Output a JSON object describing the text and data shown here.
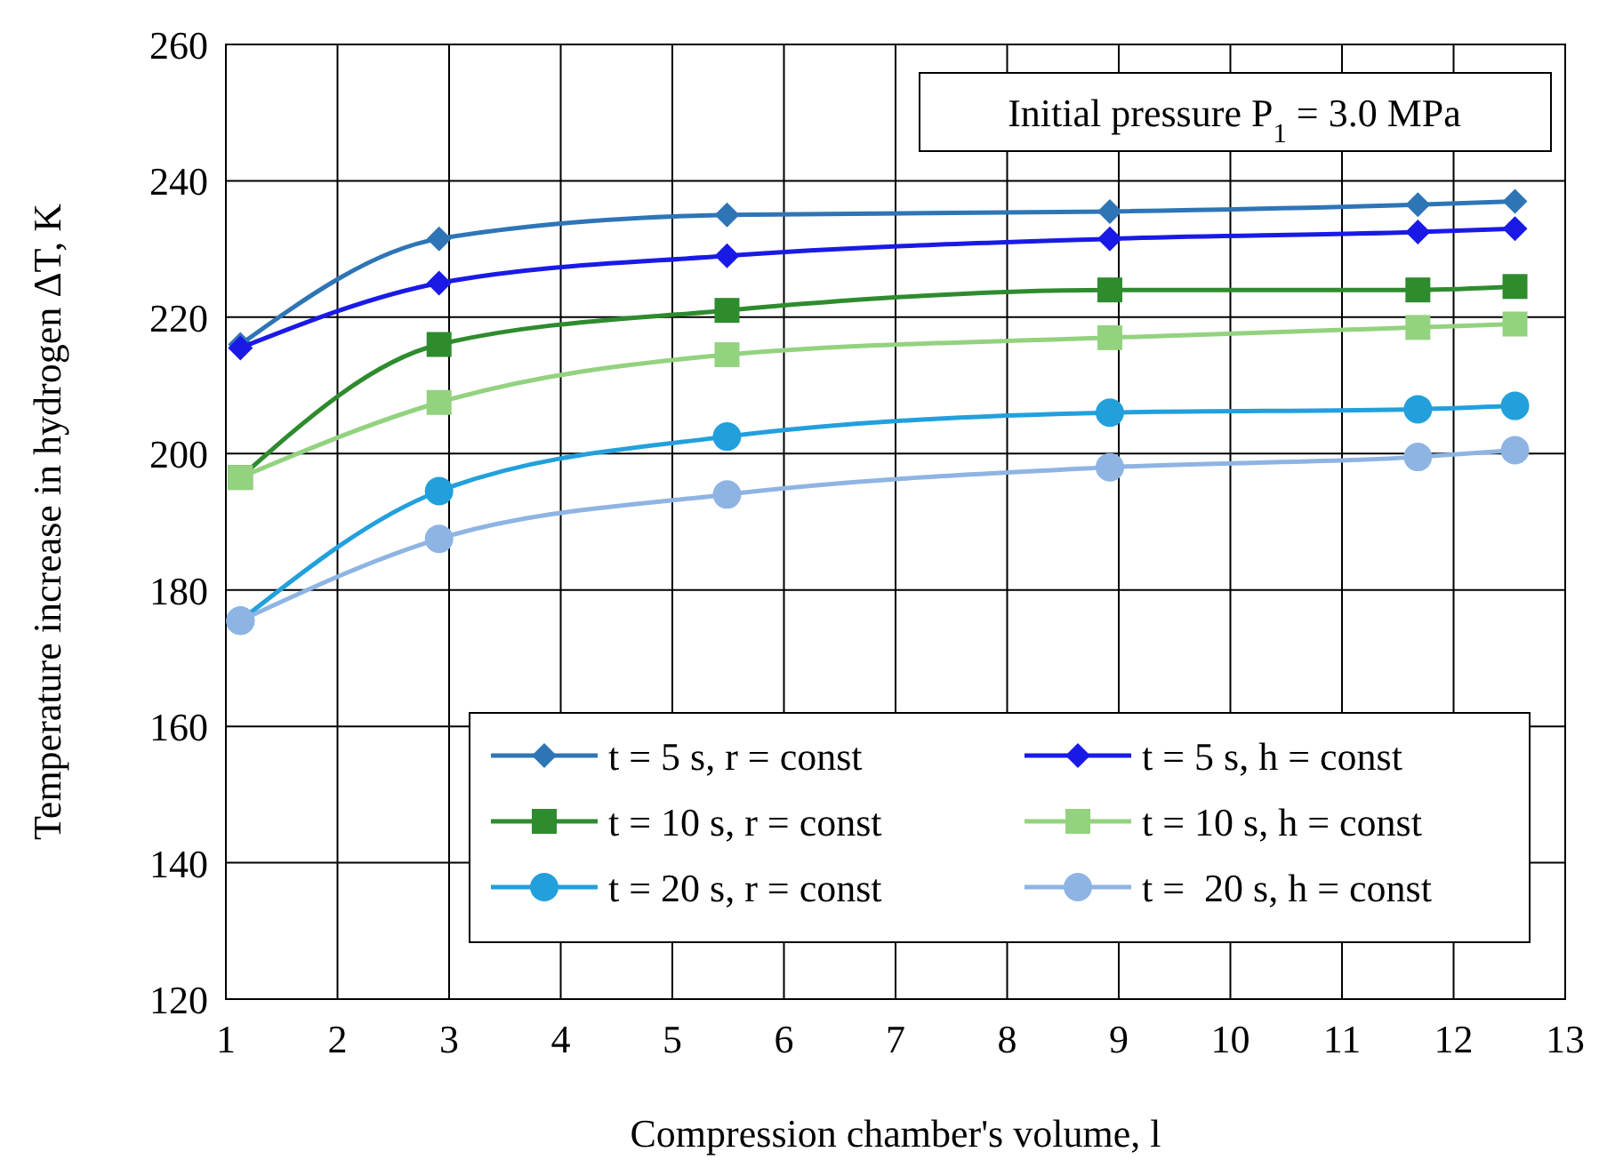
{
  "chart_data": {
    "type": "line",
    "xlabel": "Compression chamber's volume, l",
    "ylabel": "Temperature increase in hydrogen ΔT, K",
    "annotations": [
      "Initial pressure P$_{1}$ = 3.0 MPa"
    ],
    "x": [
      1.13,
      2.91,
      5.49,
      8.92,
      11.68,
      12.55
    ],
    "xlim": [
      1,
      13
    ],
    "xticks": [
      1,
      2,
      3,
      4,
      5,
      6,
      7,
      8,
      9,
      10,
      11,
      12,
      13
    ],
    "ylim": [
      120,
      260
    ],
    "yticks": [
      120,
      140,
      160,
      180,
      200,
      220,
      240,
      260
    ],
    "grid": true,
    "legend": "bottom right",
    "line_style": "solid",
    "series": [
      {
        "name": "t = 5 s, r = const",
        "color": "#2e75b6",
        "marker": "diamond",
        "values": [
          216,
          231.5,
          235,
          235.5,
          236.5,
          237
        ]
      },
      {
        "name": "t = 5 s, h = const",
        "color": "#1a1ae6",
        "marker": "diamond",
        "values": [
          215.5,
          225,
          229,
          231.5,
          232.5,
          233
        ]
      },
      {
        "name": "t = 10 s, r = const",
        "color": "#2e8b2e",
        "marker": "square",
        "values": [
          196.5,
          216,
          221,
          224,
          224,
          224.5
        ]
      },
      {
        "name": "t = 10 s, h = const",
        "color": "#93d27f",
        "marker": "square",
        "values": [
          196.5,
          207.5,
          214.5,
          217,
          218.5,
          219
        ]
      },
      {
        "name": "t = 20 s, r = const",
        "color": "#22a0dc",
        "marker": "circle",
        "values": [
          175.5,
          194.5,
          202.5,
          206,
          206.5,
          207
        ]
      },
      {
        "name": "t =  20 s, h = const",
        "color": "#8eb4e3",
        "marker": "circle",
        "values": [
          175.5,
          187.5,
          194,
          198,
          199.5,
          200.5
        ]
      }
    ]
  }
}
